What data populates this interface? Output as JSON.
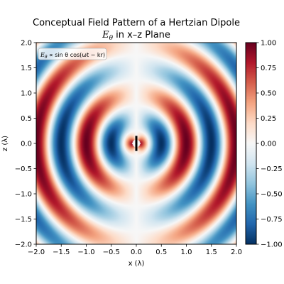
{
  "chart_data": {
    "type": "heatmap",
    "title_line1": "Conceptual Field Pattern of a Hertzian Dipole",
    "title_line2_symbol": "E",
    "title_line2_sub": "θ",
    "title_line2_rest": " in x–z Plane",
    "xlabel": "x (λ)",
    "ylabel": "z (λ)",
    "xlim": [
      -2.0,
      2.0
    ],
    "ylim": [
      -2.0,
      2.0
    ],
    "x_ticks": [
      "−2.0",
      "−1.5",
      "−1.0",
      "−0.5",
      "0.0",
      "0.5",
      "1.0",
      "1.5",
      "2.0"
    ],
    "y_ticks": [
      "2.0",
      "1.5",
      "1.0",
      "0.5",
      "0.0",
      "−0.5",
      "−1.0",
      "−1.5",
      "−2.0"
    ],
    "annotation": "E_θ ∝ sin θ cos(ωt − kr)",
    "annotation_parts": {
      "sym": "E",
      "sub": "θ",
      "rest": " ∝ sin θ cos(ωt − kr)"
    },
    "colorbar": {
      "colormap": "RdBu_r",
      "vmin": -1.0,
      "vmax": 1.0,
      "ticks": [
        "1.00",
        "0.75",
        "0.50",
        "0.25",
        "0.00",
        "−0.25",
        "−0.50",
        "−0.75",
        "−1.00"
      ]
    },
    "field_function": "sin(theta) * cos(-2*pi*r)",
    "dipole_segment": {
      "x": 0.0,
      "z_min": -0.15,
      "z_max": 0.15
    }
  }
}
